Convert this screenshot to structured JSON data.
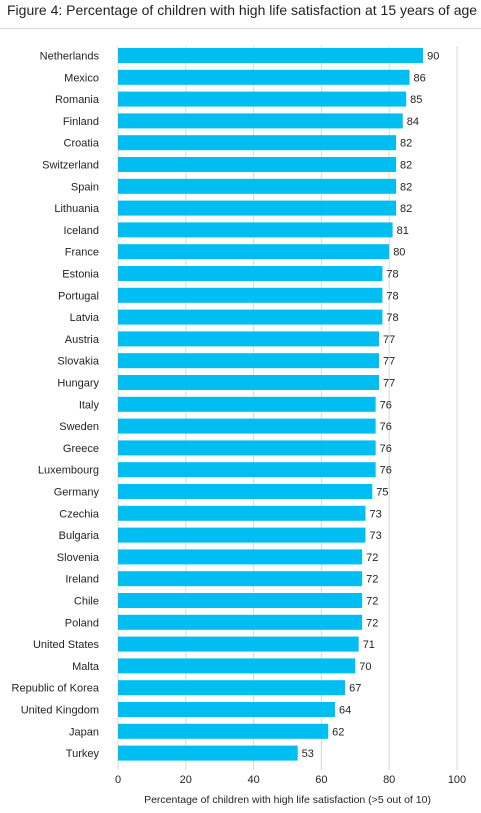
{
  "figure_title": "Figure 4: Percentage of children with high life satisfaction at 15 years of age",
  "colors": {
    "bar": "#00bdf2",
    "gridline": "#d9d9d9",
    "text": "#231f20"
  },
  "chart_data": {
    "type": "bar",
    "orientation": "horizontal",
    "title": "Figure 4: Percentage of children with high life satisfaction at 15 years of age",
    "xlabel": "Percentage of children with high life satisfaction (>5 out of 10)",
    "ylabel": "",
    "xlim": [
      0,
      100
    ],
    "xticks": [
      0,
      20,
      40,
      60,
      80,
      100
    ],
    "grid": "vertical",
    "categories": [
      "Netherlands",
      "Mexico",
      "Romania",
      "Finland",
      "Croatia",
      "Switzerland",
      "Spain",
      "Lithuania",
      "Iceland",
      "France",
      "Estonia",
      "Portugal",
      "Latvia",
      "Austria",
      "Slovakia",
      "Hungary",
      "Italy",
      "Sweden",
      "Greece",
      "Luxembourg",
      "Germany",
      "Czechia",
      "Bulgaria",
      "Slovenia",
      "Ireland",
      "Chile",
      "Poland",
      "United States",
      "Malta",
      "Republic of Korea",
      "United Kingdom",
      "Japan",
      "Turkey"
    ],
    "values": [
      90,
      86,
      85,
      84,
      82,
      82,
      82,
      82,
      81,
      80,
      78,
      78,
      78,
      77,
      77,
      77,
      76,
      76,
      76,
      76,
      75,
      73,
      73,
      72,
      72,
      72,
      72,
      71,
      70,
      67,
      64,
      62,
      53
    ]
  }
}
